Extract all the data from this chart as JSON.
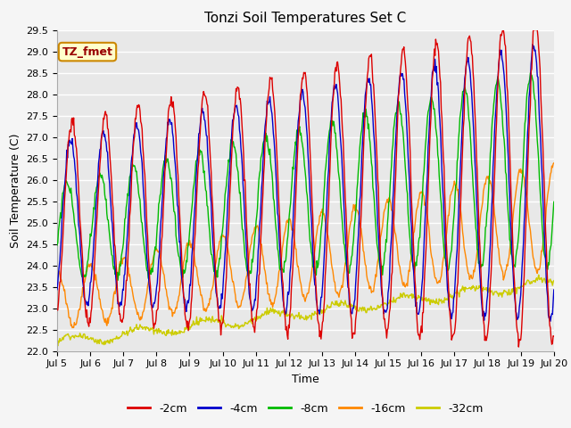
{
  "title": "Tonzi Soil Temperatures Set C",
  "xlabel": "Time",
  "ylabel": "Soil Temperature (C)",
  "ylim": [
    22.0,
    29.5
  ],
  "yticks": [
    22.0,
    22.5,
    23.0,
    23.5,
    24.0,
    24.5,
    25.0,
    25.5,
    26.0,
    26.5,
    27.0,
    27.5,
    28.0,
    28.5,
    29.0,
    29.5
  ],
  "xtick_labels": [
    "Jul 5",
    "Jul 6",
    "Jul 7",
    "Jul 8",
    "Jul 9",
    "Jul 10",
    "Jul 11",
    "Jul 12",
    "Jul 13",
    "Jul 14",
    "Jul 15",
    "Jul 16",
    "Jul 17",
    "Jul 18",
    "Jul 19",
    "Jul 20"
  ],
  "series_labels": [
    "-2cm",
    "-4cm",
    "-8cm",
    "-16cm",
    "-32cm"
  ],
  "series_colors": [
    "#dd0000",
    "#0000cc",
    "#00bb00",
    "#ff8800",
    "#cccc00"
  ],
  "annotation_text": "TZ_fmet",
  "annotation_bg": "#ffffcc",
  "annotation_border": "#cc8800",
  "plot_bg_color": "#e8e8e8",
  "fig_bg_color": "#f5f5f5",
  "grid_color": "#ffffff",
  "title_fontsize": 11,
  "label_fontsize": 9,
  "tick_fontsize": 8,
  "legend_fontsize": 9,
  "n_points": 720,
  "n_days": 15
}
